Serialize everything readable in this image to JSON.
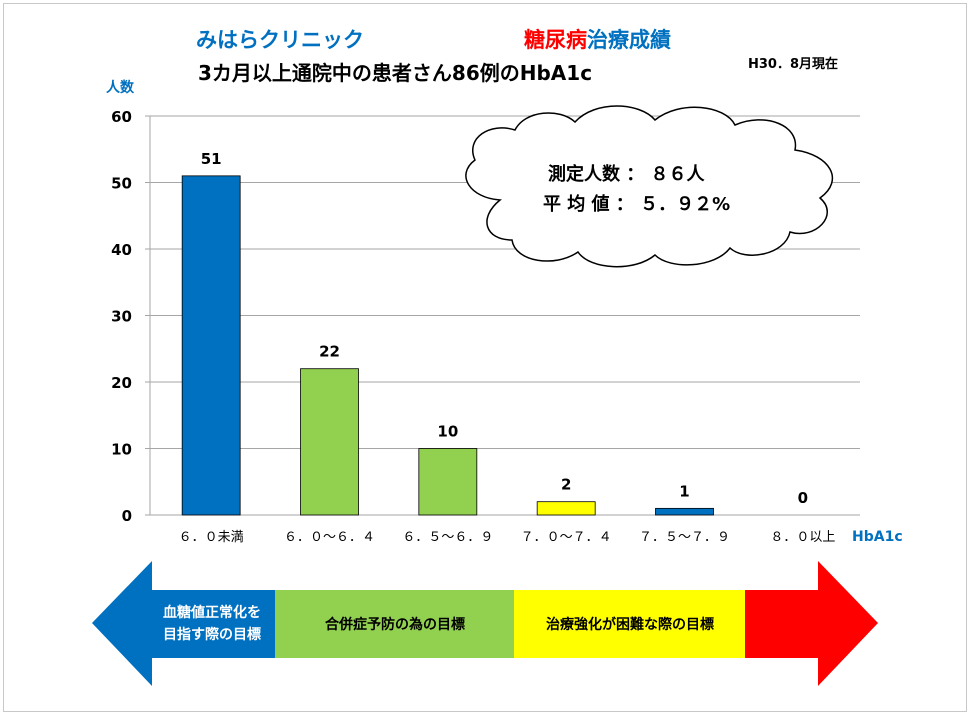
{
  "header": {
    "clinic_name": "みはらクリニック",
    "title_red": "糖尿病",
    "title_blue": "治療成績",
    "subtitle": "3カ月以上通院中の患者さん86例のHbA1c",
    "date": "H30．8月現在"
  },
  "colors": {
    "blue": "#0070c0",
    "red": "#ff0000",
    "green": "#92d050",
    "yellow": "#ffff00",
    "dark_blue_bar": "#0070c0"
  },
  "chart_data": {
    "type": "bar",
    "ylabel": "人数",
    "xlabel": "HbA1c",
    "ylim": [
      0,
      60
    ],
    "yticks": [
      0,
      10,
      20,
      30,
      40,
      50,
      60
    ],
    "grid": true,
    "categories": [
      "６．０未満",
      "６．０～６．４",
      "６．５～６．９",
      "７．０～７．４",
      "７．５～７．９",
      "８．０以上"
    ],
    "values": [
      51,
      22,
      10,
      2,
      1,
      0
    ],
    "bar_colors": [
      "#0070c0",
      "#92d050",
      "#92d050",
      "#ffff00",
      "#0070c0",
      "#0070c0"
    ],
    "callout": {
      "line1": "測定人数 ： ８６人",
      "line2": "平 均 値 ： ５．９２%"
    }
  },
  "legend_arrow": {
    "segments": [
      {
        "label": "血糖値正常化を\n目指す際の目標",
        "color": "#0070c0"
      },
      {
        "label": "合併症予防の為の目標",
        "color": "#92d050"
      },
      {
        "label": "治療強化が困難な際の目標",
        "color": "#ffff00"
      },
      {
        "label": "",
        "color": "#ff0000"
      }
    ]
  }
}
